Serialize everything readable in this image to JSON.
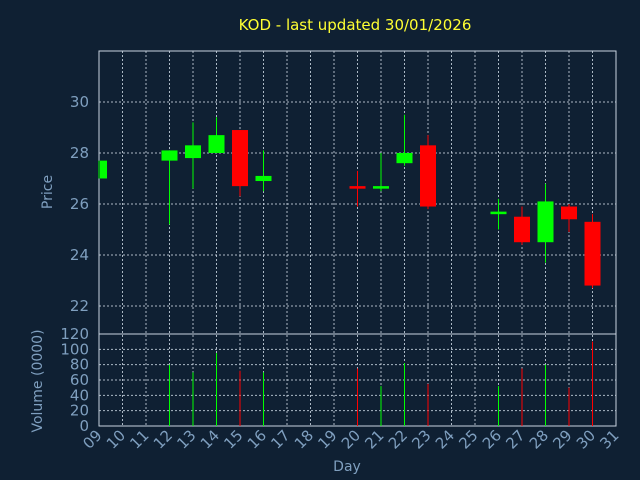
{
  "chart_data": {
    "type": "candlestick",
    "title": "KOD - last updated 30/01/2026",
    "xlabel": "Day",
    "price_ylabel": "Price",
    "volume_ylabel": "Volume (0000)",
    "x_ticks": [
      "09",
      "10",
      "11",
      "12",
      "13",
      "14",
      "15",
      "16",
      "17",
      "18",
      "19",
      "20",
      "21",
      "22",
      "23",
      "24",
      "25",
      "26",
      "27",
      "28",
      "29",
      "30",
      "31"
    ],
    "x_range": [
      9,
      31
    ],
    "price_ylim": [
      20.9,
      32.0
    ],
    "price_ticks": [
      "22",
      "24",
      "26",
      "28",
      "30"
    ],
    "volume_ylim": [
      0,
      120
    ],
    "volume_ticks": [
      "0",
      "20",
      "40",
      "60",
      "80",
      "100",
      "120"
    ],
    "grid": true,
    "colors": {
      "up": "#00ff00",
      "down": "#ff0000",
      "title": "#ffff33",
      "text": "#7f9fbf",
      "background": "#0f2033"
    },
    "candles": [
      {
        "day": 9,
        "open": 27.0,
        "high": 27.7,
        "low": 27.0,
        "close": 27.7,
        "volume": 0
      },
      {
        "day": 12,
        "open": 27.7,
        "high": 28.1,
        "low": 25.2,
        "close": 28.1,
        "volume": 80
      },
      {
        "day": 13,
        "open": 27.8,
        "high": 29.2,
        "low": 26.6,
        "close": 28.3,
        "volume": 70
      },
      {
        "day": 14,
        "open": 28.0,
        "high": 29.4,
        "low": 28.0,
        "close": 28.7,
        "volume": 95
      },
      {
        "day": 15,
        "open": 28.9,
        "high": 28.9,
        "low": 26.3,
        "close": 26.7,
        "volume": 72
      },
      {
        "day": 16,
        "open": 26.9,
        "high": 28.1,
        "low": 26.5,
        "close": 27.1,
        "volume": 70
      },
      {
        "day": 20,
        "open": 26.7,
        "high": 27.3,
        "low": 25.9,
        "close": 26.6,
        "volume": 75
      },
      {
        "day": 21,
        "open": 26.6,
        "high": 28.0,
        "low": 26.5,
        "close": 26.7,
        "volume": 52
      },
      {
        "day": 22,
        "open": 27.6,
        "high": 29.5,
        "low": 27.5,
        "close": 28.0,
        "volume": 82
      },
      {
        "day": 23,
        "open": 28.3,
        "high": 28.7,
        "low": 25.8,
        "close": 25.9,
        "volume": 55
      },
      {
        "day": 26,
        "open": 25.6,
        "high": 26.2,
        "low": 25.0,
        "close": 25.7,
        "volume": 52
      },
      {
        "day": 27,
        "open": 25.5,
        "high": 25.9,
        "low": 24.4,
        "close": 24.5,
        "volume": 75
      },
      {
        "day": 28,
        "open": 24.5,
        "high": 26.8,
        "low": 23.7,
        "close": 26.1,
        "volume": 80
      },
      {
        "day": 29,
        "open": 25.9,
        "high": 26.0,
        "low": 24.9,
        "close": 25.4,
        "volume": 50
      },
      {
        "day": 30,
        "open": 25.3,
        "high": 25.6,
        "low": 22.7,
        "close": 22.8,
        "volume": 110
      }
    ]
  }
}
